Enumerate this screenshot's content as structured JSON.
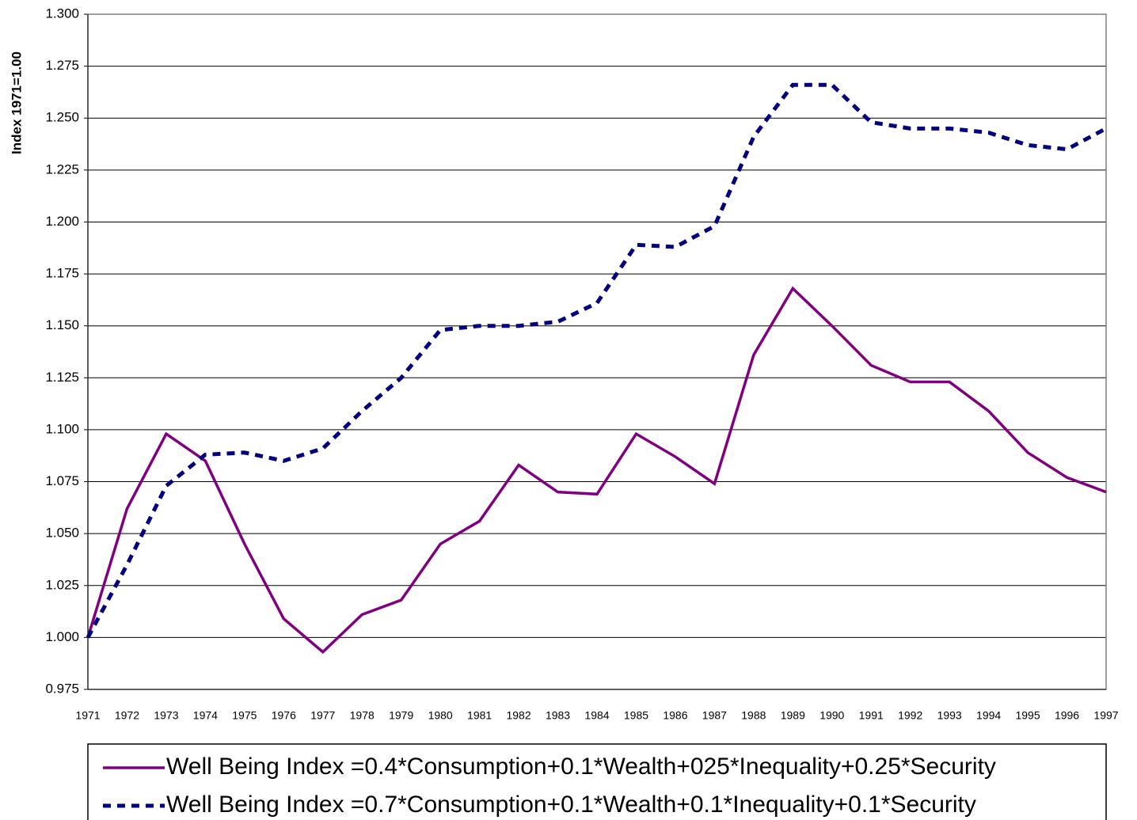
{
  "chart_data": {
    "type": "line",
    "y_label": "Index 1971=1.00",
    "categories": [
      "1971",
      "1972",
      "1973",
      "1974",
      "1975",
      "1976",
      "1977",
      "1978",
      "1979",
      "1980",
      "1981",
      "1982",
      "1983",
      "1984",
      "1985",
      "1986",
      "1987",
      "1988",
      "1989",
      "1990",
      "1991",
      "1992",
      "1993",
      "1994",
      "1995",
      "1996",
      "1997"
    ],
    "series": [
      {
        "name": "Well Being Index =0.4*Consumption+0.1*Wealth+025*Inequality+0.25*Security",
        "color": "#800080",
        "line_style": "solid",
        "values": [
          1.0,
          1.062,
          1.098,
          1.085,
          1.045,
          1.009,
          0.993,
          1.011,
          1.018,
          1.045,
          1.056,
          1.083,
          1.07,
          1.069,
          1.098,
          1.087,
          1.074,
          1.136,
          1.168,
          1.15,
          1.131,
          1.123,
          1.123,
          1.109,
          1.089,
          1.077,
          1.07
        ]
      },
      {
        "name": "Well Being Index =0.7*Consumption+0.1*Wealth+0.1*Inequality+0.1*Security",
        "color": "#000080",
        "line_style": "dashed",
        "values": [
          1.0,
          1.035,
          1.073,
          1.088,
          1.089,
          1.085,
          1.091,
          1.109,
          1.125,
          1.148,
          1.15,
          1.15,
          1.152,
          1.161,
          1.189,
          1.188,
          1.198,
          1.241,
          1.266,
          1.266,
          1.248,
          1.245,
          1.245,
          1.243,
          1.237,
          1.235,
          1.245
        ]
      }
    ],
    "ylim": [
      0.975,
      1.3
    ],
    "yticks": [
      {
        "value": 0.975,
        "label": "0.975"
      },
      {
        "value": 1.0,
        "label": "1.000"
      },
      {
        "value": 1.025,
        "label": "1.025"
      },
      {
        "value": 1.05,
        "label": "1.050"
      },
      {
        "value": 1.075,
        "label": "1.075"
      },
      {
        "value": 1.1,
        "label": "1.100"
      },
      {
        "value": 1.125,
        "label": "1.125"
      },
      {
        "value": 1.15,
        "label": "1.150"
      },
      {
        "value": 1.175,
        "label": "1.175"
      },
      {
        "value": 1.2,
        "label": "1.200"
      },
      {
        "value": 1.225,
        "label": "1.225"
      },
      {
        "value": 1.25,
        "label": "1.250"
      },
      {
        "value": 1.275,
        "label": "1.275"
      },
      {
        "value": 1.3,
        "label": "1.300"
      }
    ],
    "grid": true,
    "legend": "bottom"
  }
}
